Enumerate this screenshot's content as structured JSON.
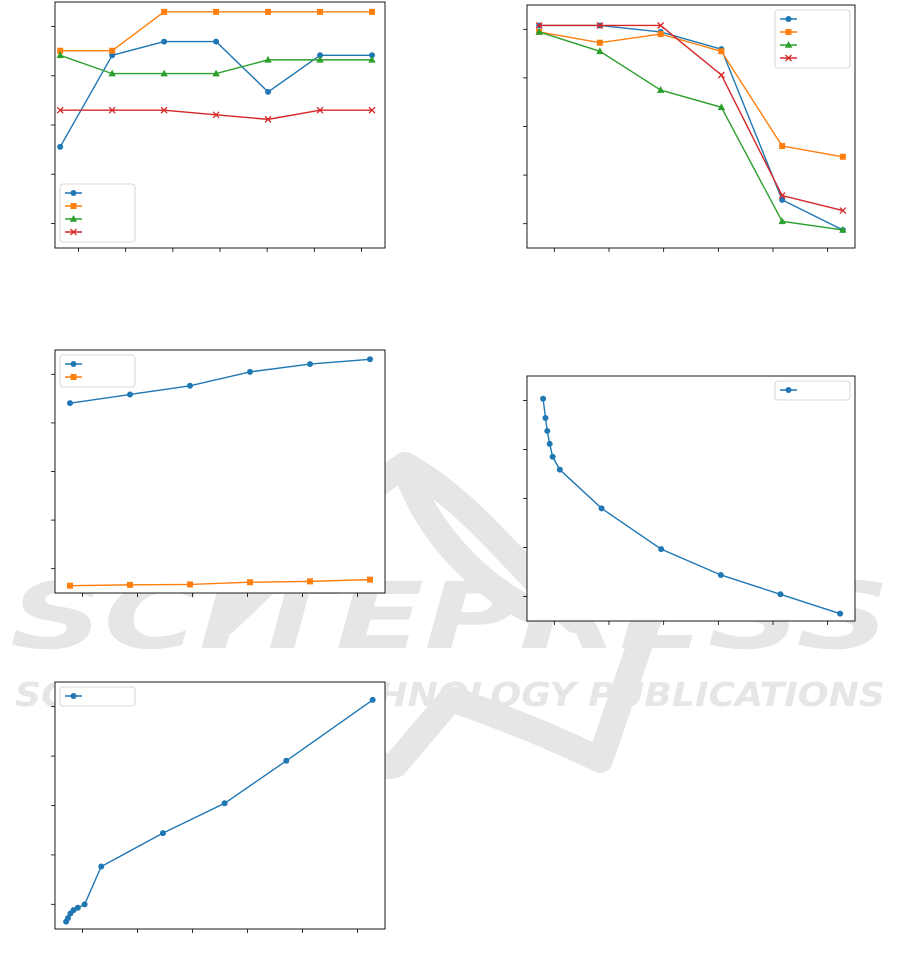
{
  "watermark": {
    "name": "SCITEPRESS",
    "tagline": "SCIENCE AND TECHNOLOGY PUBLICATIONS",
    "color": "#e6e6e6"
  },
  "colors": [
    "#1f77b4",
    "#ff7f0e",
    "#2ca02c",
    "#d62728"
  ],
  "chart_data": [
    {
      "type": "line",
      "title": "",
      "xlabel": "",
      "ylabel": "",
      "grid": false,
      "legend": "lower-left",
      "x": [
        1,
        2,
        3,
        4,
        5,
        6,
        7
      ],
      "xlim": [
        0.9,
        7.25
      ],
      "ylim": [
        0,
        10
      ],
      "series": [
        {
          "values": [
            4.1,
            8.1,
            8.7,
            8.7,
            6.5,
            8.1,
            8.1
          ],
          "marker": "circle"
        },
        {
          "values": [
            8.3,
            8.3,
            10,
            10,
            10,
            10,
            10
          ],
          "marker": "square"
        },
        {
          "values": [
            8.1,
            7.3,
            7.3,
            7.3,
            7.9,
            7.9,
            7.9
          ],
          "marker": "triangle"
        },
        {
          "values": [
            5.7,
            5.7,
            5.7,
            5.5,
            5.3,
            5.7,
            5.7
          ],
          "marker": "x"
        }
      ]
    },
    {
      "type": "line",
      "title": "",
      "xlabel": "",
      "ylabel": "",
      "grid": false,
      "legend": "upper-right",
      "x": [
        1,
        2,
        3,
        4,
        5,
        6
      ],
      "xlim": [
        0.8,
        6.2
      ],
      "ylim": [
        0,
        1.05
      ],
      "series": [
        {
          "values": [
            1.0,
            1.0,
            0.97,
            0.89,
            0.19,
            0.05
          ],
          "marker": "circle"
        },
        {
          "values": [
            0.97,
            0.92,
            0.96,
            0.88,
            0.44,
            0.39
          ],
          "marker": "square"
        },
        {
          "values": [
            0.97,
            0.88,
            0.7,
            0.62,
            0.09,
            0.05
          ],
          "marker": "triangle"
        },
        {
          "values": [
            1.0,
            1.0,
            1.0,
            0.77,
            0.21,
            0.14
          ],
          "marker": "x"
        }
      ]
    },
    {
      "type": "line",
      "title": "",
      "xlabel": "",
      "ylabel": "",
      "grid": false,
      "legend": "upper-left",
      "x": [
        1,
        2,
        3,
        4,
        5,
        6
      ],
      "xlim": [
        0.75,
        6.25
      ],
      "ylim": [
        0,
        52
      ],
      "series": [
        {
          "values": [
            42,
            44,
            46,
            49.2,
            51,
            52.1
          ],
          "marker": "circle"
        },
        {
          "values": [
            0,
            0.2,
            0.3,
            0.8,
            1.0,
            1.4
          ],
          "marker": "square"
        }
      ]
    },
    {
      "type": "line",
      "title": "",
      "xlabel": "",
      "ylabel": "",
      "grid": false,
      "legend": "upper-right",
      "x": [
        0.2,
        0.6,
        0.9,
        1.3,
        1.8,
        3,
        10,
        20,
        30,
        40,
        50
      ],
      "xlim": [
        -2.5,
        52.5
      ],
      "ylim": [
        0,
        10.6
      ],
      "series": [
        {
          "values": [
            10,
            9.1,
            8.5,
            7.9,
            7.3,
            6.7,
            4.9,
            3.0,
            1.8,
            0.9,
            0
          ],
          "marker": "circle"
        }
      ]
    },
    {
      "type": "line",
      "title": "",
      "xlabel": "",
      "ylabel": "",
      "grid": false,
      "legend": "upper-left",
      "x": [
        0.3,
        0.6,
        1,
        1.5,
        2.2,
        3.3,
        6,
        16,
        26,
        36,
        50
      ],
      "xlim": [
        -1.5,
        52
      ],
      "ylim": [
        0,
        100
      ],
      "series": [
        {
          "values": [
            0,
            1.5,
            3.5,
            5,
            6,
            7.5,
            24,
            38.5,
            51.5,
            70,
            96.5
          ],
          "marker": "circle"
        }
      ]
    }
  ]
}
